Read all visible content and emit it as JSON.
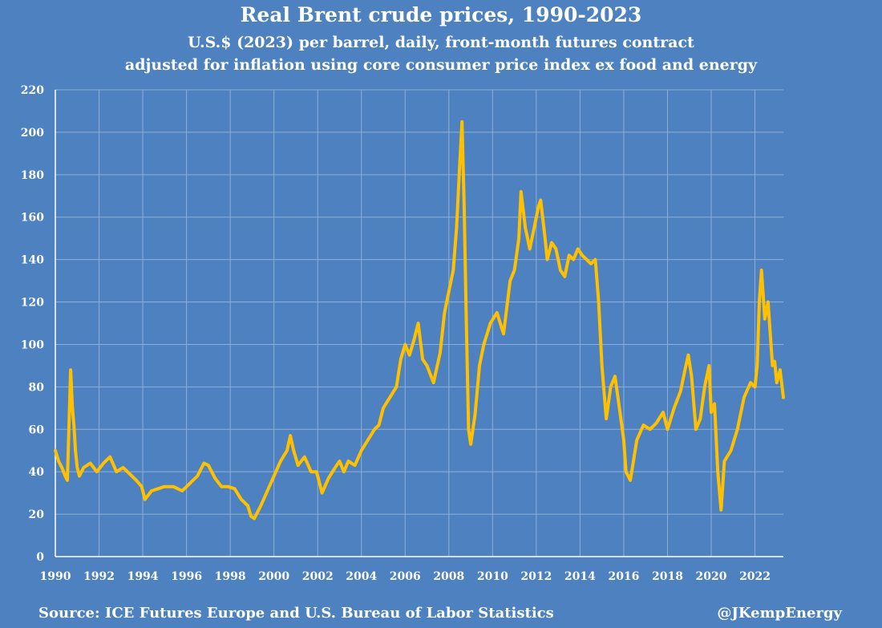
{
  "chart_data": {
    "type": "line",
    "title": "Real Brent crude prices, 1990-2023",
    "subtitle": [
      "U.S.$ (2023) per barrel, daily, front-month futures contract",
      "adjusted for inflation using core consumer price index ex food and energy"
    ],
    "xlabel": "",
    "ylabel": "",
    "xlim": [
      1990,
      2023.3
    ],
    "ylim": [
      0,
      220
    ],
    "x_ticks": [
      "1990",
      "1992",
      "1994",
      "1996",
      "1998",
      "2000",
      "2002",
      "2004",
      "2006",
      "2008",
      "2010",
      "2012",
      "2014",
      "2016",
      "2018",
      "2020",
      "2022"
    ],
    "y_ticks": [
      "0",
      "20",
      "40",
      "60",
      "80",
      "100",
      "120",
      "140",
      "160",
      "180",
      "200",
      "220"
    ],
    "grid": true,
    "line_color": "#ffc000",
    "series": [
      {
        "x": [
          1990.0,
          1990.15,
          1990.3,
          1990.45,
          1990.55,
          1990.62,
          1990.7,
          1990.78,
          1990.85,
          1990.92,
          1991.0,
          1991.1,
          1991.3,
          1991.6,
          1991.9,
          1992.2,
          1992.5,
          1992.8,
          1993.1,
          1993.4,
          1993.7,
          1993.95,
          1994.1,
          1994.4,
          1994.7,
          1995.0,
          1995.4,
          1995.8,
          1996.2,
          1996.5,
          1996.8,
          1997.0,
          1997.3,
          1997.6,
          1997.9,
          1998.2,
          1998.5,
          1998.8,
          1998.95,
          1999.1,
          1999.4,
          1999.7,
          2000.0,
          2000.3,
          2000.6,
          2000.75,
          2000.9,
          2001.1,
          2001.4,
          2001.7,
          2001.95,
          2002.2,
          2002.5,
          2002.8,
          2003.0,
          2003.2,
          2003.4,
          2003.7,
          2004.0,
          2004.3,
          2004.6,
          2004.8,
          2005.0,
          2005.3,
          2005.6,
          2005.8,
          2006.0,
          2006.2,
          2006.4,
          2006.6,
          2006.8,
          2007.0,
          2007.3,
          2007.6,
          2007.8,
          2008.0,
          2008.2,
          2008.35,
          2008.5,
          2008.6,
          2008.7,
          2008.8,
          2008.9,
          2009.0,
          2009.2,
          2009.4,
          2009.6,
          2009.9,
          2010.2,
          2010.5,
          2010.8,
          2011.0,
          2011.2,
          2011.3,
          2011.5,
          2011.7,
          2011.9,
          2012.1,
          2012.2,
          2012.4,
          2012.5,
          2012.7,
          2012.9,
          2013.1,
          2013.3,
          2013.5,
          2013.7,
          2013.9,
          2014.1,
          2014.3,
          2014.5,
          2014.7,
          2014.85,
          2015.0,
          2015.2,
          2015.4,
          2015.6,
          2015.8,
          2016.0,
          2016.1,
          2016.3,
          2016.6,
          2016.9,
          2017.2,
          2017.5,
          2017.8,
          2018.0,
          2018.3,
          2018.6,
          2018.8,
          2018.95,
          2019.1,
          2019.3,
          2019.5,
          2019.7,
          2019.9,
          2020.0,
          2020.15,
          2020.3,
          2020.45,
          2020.6,
          2020.9,
          2021.2,
          2021.5,
          2021.8,
          2022.0,
          2022.1,
          2022.2,
          2022.3,
          2022.45,
          2022.6,
          2022.8,
          2022.9,
          2023.0,
          2023.15,
          2023.3
        ],
        "values": [
          50,
          45,
          42,
          38,
          36,
          60,
          88,
          70,
          62,
          50,
          42,
          38,
          42,
          44,
          40,
          44,
          47,
          40,
          42,
          39,
          36,
          33,
          27,
          31,
          32,
          33,
          33,
          31,
          35,
          38,
          44,
          43,
          37,
          33,
          33,
          32,
          27,
          24,
          19,
          18,
          24,
          31,
          38,
          45,
          50,
          57,
          50,
          43,
          47,
          40,
          40,
          30,
          37,
          42,
          45,
          40,
          45,
          43,
          50,
          55,
          60,
          62,
          70,
          75,
          80,
          93,
          100,
          95,
          102,
          110,
          93,
          90,
          82,
          96,
          115,
          125,
          135,
          155,
          185,
          205,
          165,
          110,
          60,
          53,
          67,
          90,
          100,
          110,
          115,
          105,
          130,
          135,
          150,
          172,
          155,
          145,
          155,
          165,
          168,
          150,
          140,
          148,
          145,
          135,
          132,
          142,
          140,
          145,
          142,
          140,
          138,
          140,
          120,
          90,
          65,
          80,
          85,
          70,
          55,
          40,
          36,
          55,
          62,
          60,
          63,
          68,
          60,
          70,
          78,
          88,
          95,
          85,
          60,
          65,
          80,
          90,
          68,
          72,
          40,
          22,
          45,
          50,
          60,
          75,
          82,
          80,
          90,
          120,
          135,
          112,
          120,
          90,
          92,
          82,
          88,
          75
        ]
      }
    ]
  },
  "footer": {
    "source": "Source: ICE Futures Europe and U.S. Bureau of Labor Statistics",
    "handle": "@JKempEnergy"
  }
}
